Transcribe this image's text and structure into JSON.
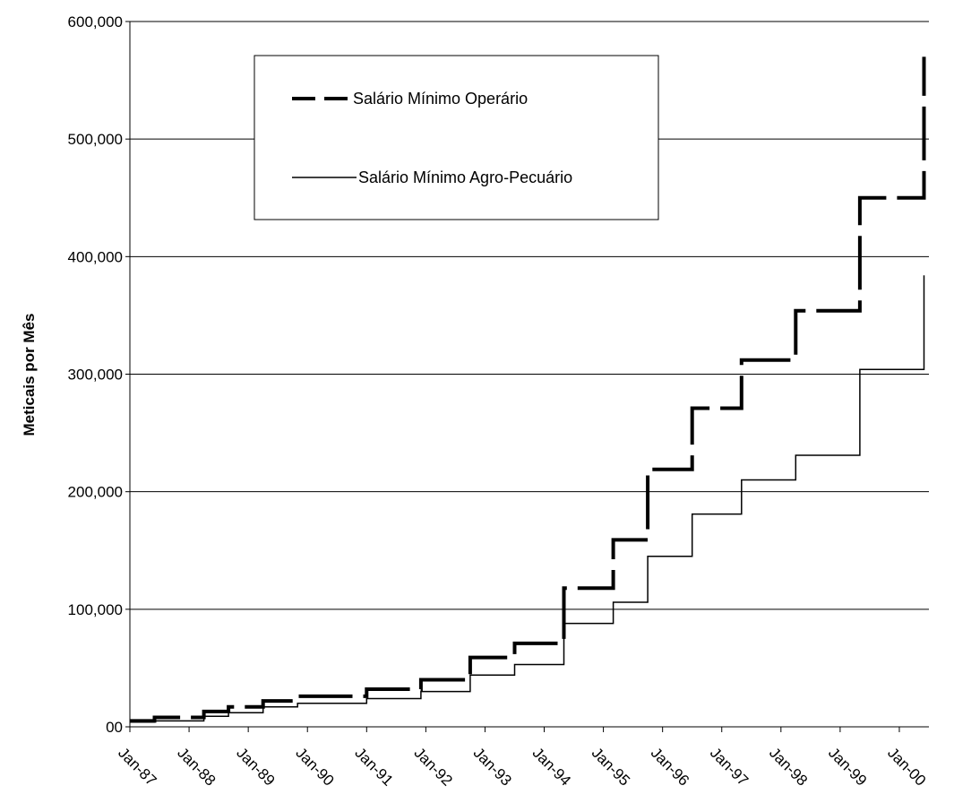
{
  "chart_data": {
    "type": "line",
    "title": "",
    "xlabel": "",
    "ylabel": "Meticais por Mês",
    "ylim": [
      0,
      600000
    ],
    "y_ticks": [
      0,
      100000,
      200000,
      300000,
      400000,
      500000,
      600000
    ],
    "y_tick_labels": [
      "00",
      "100,000",
      "200,000",
      "300,000",
      "400,000",
      "500,000",
      "600,000"
    ],
    "x_range": [
      "1987-01",
      "2000-07"
    ],
    "x_ticks": [
      "1987-01",
      "1988-01",
      "1989-01",
      "1990-01",
      "1991-01",
      "1992-01",
      "1993-01",
      "1994-01",
      "1995-01",
      "1996-01",
      "1997-01",
      "1998-01",
      "1999-01",
      "2000-01"
    ],
    "x_tick_labels": [
      "Jan-87",
      "Jan-88",
      "Jan-89",
      "Jan-90",
      "Jan-91",
      "Jan-92",
      "Jan-93",
      "Jan-94",
      "Jan-95",
      "Jan-96",
      "Jan-97",
      "Jan-98",
      "Jan-99",
      "Jan-00"
    ],
    "grid": "horizontal",
    "legend_position": "top-left",
    "series": [
      {
        "name": "Salário Mínimo Operário",
        "style": "dashed",
        "color": "#000000",
        "steps": [
          {
            "date": "1987-01",
            "value": 5000
          },
          {
            "date": "1987-06",
            "value": 8000
          },
          {
            "date": "1988-04",
            "value": 13000
          },
          {
            "date": "1988-09",
            "value": 17000
          },
          {
            "date": "1989-04",
            "value": 22000
          },
          {
            "date": "1989-11",
            "value": 26000
          },
          {
            "date": "1991-01",
            "value": 32000
          },
          {
            "date": "1991-12",
            "value": 40000
          },
          {
            "date": "1992-10",
            "value": 59000
          },
          {
            "date": "1993-07",
            "value": 71000
          },
          {
            "date": "1994-05",
            "value": 118000
          },
          {
            "date": "1995-03",
            "value": 159000
          },
          {
            "date": "1995-10",
            "value": 219000
          },
          {
            "date": "1996-07",
            "value": 271000
          },
          {
            "date": "1997-05",
            "value": 312000
          },
          {
            "date": "1998-04",
            "value": 354000
          },
          {
            "date": "1999-05",
            "value": 450000
          },
          {
            "date": "2000-06",
            "value": 570000
          }
        ],
        "end_date": "2000-06"
      },
      {
        "name": "Salário Mínimo Agro-Pecuário",
        "style": "solid",
        "color": "#000000",
        "steps": [
          {
            "date": "1987-01",
            "value": 4000
          },
          {
            "date": "1987-06",
            "value": 5000
          },
          {
            "date": "1988-04",
            "value": 9000
          },
          {
            "date": "1988-09",
            "value": 12000
          },
          {
            "date": "1989-04",
            "value": 17000
          },
          {
            "date": "1989-11",
            "value": 20000
          },
          {
            "date": "1991-01",
            "value": 24000
          },
          {
            "date": "1991-12",
            "value": 30000
          },
          {
            "date": "1992-10",
            "value": 44000
          },
          {
            "date": "1993-07",
            "value": 53000
          },
          {
            "date": "1994-05",
            "value": 88000
          },
          {
            "date": "1995-03",
            "value": 106000
          },
          {
            "date": "1995-10",
            "value": 145000
          },
          {
            "date": "1996-07",
            "value": 181000
          },
          {
            "date": "1997-05",
            "value": 210000
          },
          {
            "date": "1998-04",
            "value": 231000
          },
          {
            "date": "1999-05",
            "value": 304000
          },
          {
            "date": "2000-06",
            "value": 384000
          }
        ],
        "end_date": "2000-06"
      }
    ]
  }
}
